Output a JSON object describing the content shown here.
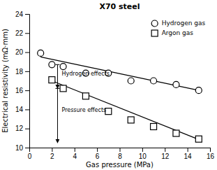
{
  "chart_data": {
    "type": "scatter",
    "title": "X70 steel",
    "x_label": "Gas pressure (MPa)",
    "y_label": "Electrical resistivity (mΩ·mm)",
    "xlim": [
      0,
      16
    ],
    "ylim": [
      10,
      24
    ],
    "xticks": [
      0,
      2,
      4,
      6,
      8,
      10,
      12,
      14,
      16
    ],
    "yticks": [
      10,
      12,
      14,
      16,
      18,
      20,
      22,
      24
    ],
    "grid": false,
    "legend": "upper right",
    "series": [
      {
        "name": "Hydrogen gas",
        "type": "scatter",
        "marker": "circle",
        "color": "#000000",
        "x": [
          1,
          2,
          3,
          5,
          7,
          9,
          11,
          13,
          15
        ],
        "values": [
          19.9,
          18.7,
          18.5,
          17.8,
          17.8,
          17.0,
          17.0,
          16.6,
          16.0
        ]
      },
      {
        "name": "Argon gas",
        "type": "scatter",
        "marker": "square",
        "color": "#000000",
        "x": [
          2,
          3,
          5,
          7,
          9,
          11,
          13,
          15
        ],
        "values": [
          17.1,
          16.2,
          15.4,
          13.8,
          12.9,
          12.2,
          11.5,
          10.9
        ]
      },
      {
        "type": "line",
        "color": "#000000",
        "x": [
          1,
          15
        ],
        "values": [
          19.5,
          16.0
        ]
      },
      {
        "type": "line",
        "color": "#000000",
        "x": [
          2,
          15
        ],
        "values": [
          17.0,
          10.85
        ]
      }
    ],
    "annotations": [
      {
        "text": "Hydrogen effects",
        "x": 2.5,
        "y_from": 18.7,
        "y_to": 16.2
      },
      {
        "text": "Pressure effects",
        "x": 2.5,
        "y_from": 16.2,
        "y_to": 10.5
      }
    ]
  }
}
